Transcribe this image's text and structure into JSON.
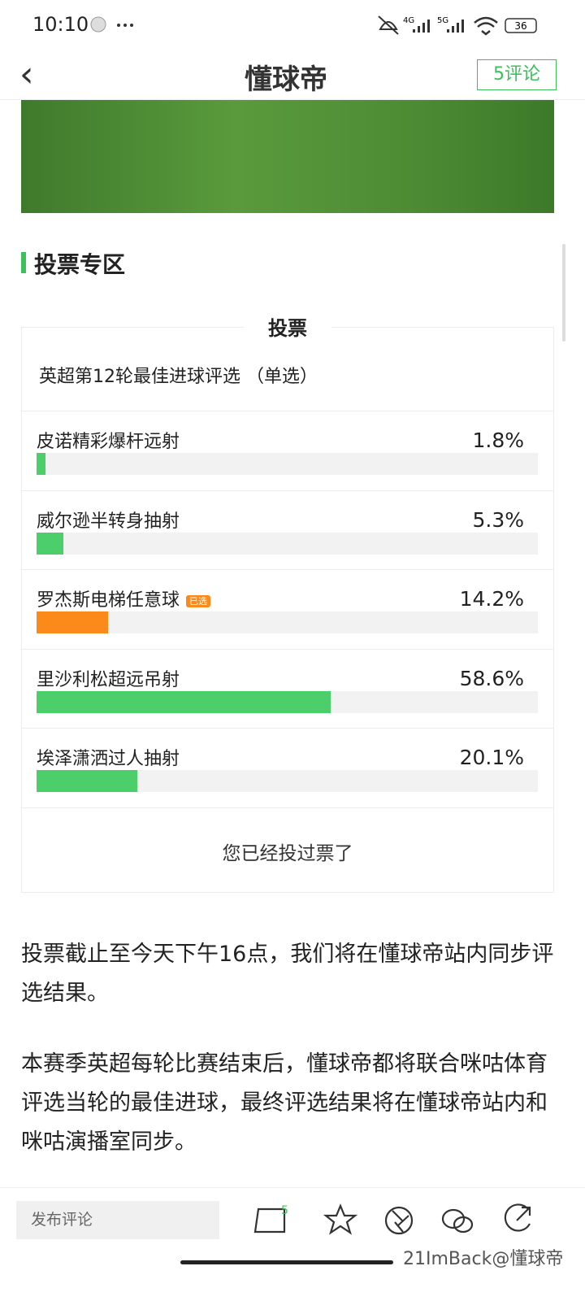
{
  "status_bar": {
    "time": "10:10",
    "net1": "4G",
    "net2": "5G",
    "battery": "36"
  },
  "header": {
    "back": "‹",
    "title": "懂球帝",
    "comment_button": "5评论"
  },
  "section": {
    "title": "投票专区"
  },
  "poll": {
    "heading": "投票",
    "question": "英超第12轮最佳进球评选 （单选）",
    "bar_color": "#4ccf6b",
    "selected_color": "#fb8a1a",
    "options": [
      {
        "label": "皮诺精彩爆杆远射",
        "value": 1.8,
        "value_label": "1.8%"
      },
      {
        "label": "威尔逊半转身抽射",
        "value": 5.3,
        "value_label": "5.3%"
      },
      {
        "label": "罗杰斯电梯任意球",
        "value": 14.2,
        "value_label": "14.2%",
        "badge": "已选",
        "selected": true
      },
      {
        "label": "里沙利松超远吊射",
        "value": 58.6,
        "value_label": "58.6%"
      },
      {
        "label": "埃泽潇洒过人抽射",
        "value": 20.1,
        "value_label": "20.1%"
      }
    ],
    "footer": "您已经投过票了"
  },
  "article": {
    "paragraphs": [
      "投票截止至今天下午16点，我们将在懂球帝站内同步评选结果。",
      "本赛季英超每轮比赛结束后，懂球帝都将联合咪咕体育评选当轮的最佳进球，最终评选结果将在懂球帝站内和咪咕演播室同步。"
    ]
  },
  "bottom_bar": {
    "input_placeholder": "发布评论",
    "comment_count": "5",
    "watermark": "21ImBack@懂球帝"
  }
}
